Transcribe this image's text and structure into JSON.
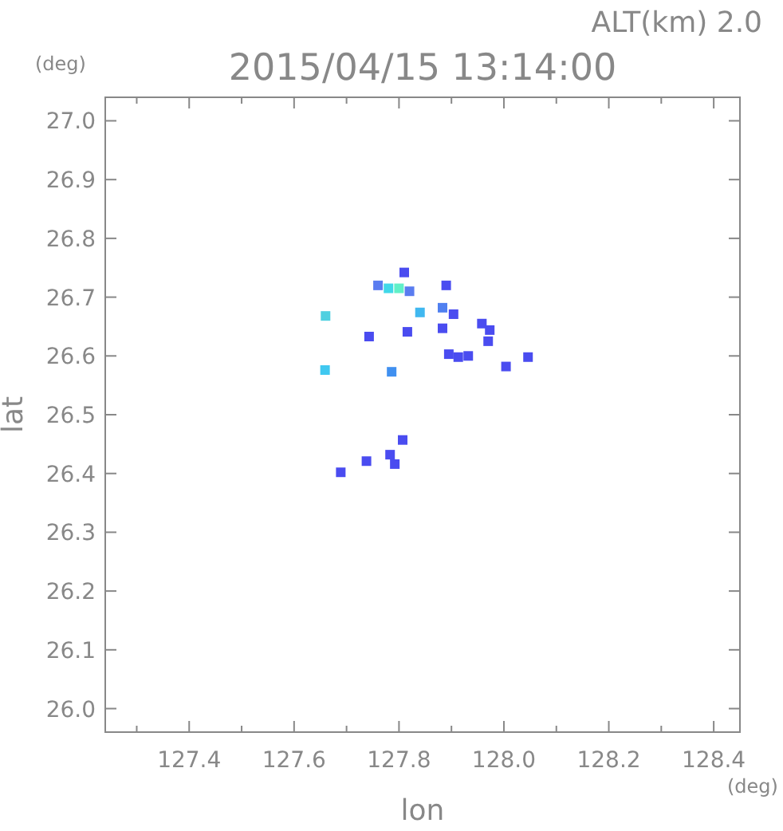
{
  "chart_data": {
    "type": "scatter",
    "title": "2015/04/15 13:14:00",
    "subtitle": "ALT(km) 2.0",
    "xlabel": "lon",
    "ylabel": "lat",
    "annotations": [
      "(deg)",
      "(deg)"
    ],
    "x": [
      127.76,
      127.78,
      127.8,
      127.82,
      127.81,
      127.89,
      127.66,
      127.84,
      127.883,
      127.904,
      127.816,
      127.743,
      127.883,
      127.958,
      127.973,
      127.97,
      127.895,
      127.913,
      127.932,
      128.004,
      128.046,
      127.659,
      127.786,
      127.807,
      127.783,
      127.792,
      127.738,
      127.689
    ],
    "values": [
      26.72,
      26.715,
      26.715,
      26.71,
      26.742,
      26.72,
      26.668,
      26.674,
      26.682,
      26.671,
      26.641,
      26.633,
      26.647,
      26.655,
      26.644,
      26.625,
      26.603,
      26.598,
      26.6,
      26.582,
      26.598,
      26.576,
      26.573,
      26.457,
      26.432,
      26.416,
      26.421,
      26.402
    ],
    "colors": [
      "#5a7cf0",
      "#40d8e8",
      "#60f0c8",
      "#5a7cf0",
      "#4a4cf0",
      "#4a4cf0",
      "#50d0e0",
      "#40b8f0",
      "#5080f0",
      "#4a4cf0",
      "#4a4cf0",
      "#4a4cf0",
      "#4a4cf0",
      "#4a4cf0",
      "#4a4cf0",
      "#4a4cf0",
      "#4a4cf0",
      "#4a4cf0",
      "#4a4cf0",
      "#4a4cf0",
      "#4a4cf0",
      "#40c8f0",
      "#4090f0",
      "#4a4cf0",
      "#4a4cf0",
      "#4a4cf0",
      "#4a4cf0",
      "#4a4cf0"
    ],
    "marker": "square",
    "xlim": [
      127.24,
      128.45
    ],
    "ylim": [
      25.96,
      27.04
    ],
    "xticks": [
      {
        "value": 127.3,
        "label": null
      },
      127.4,
      {
        "value": 127.5,
        "label": null
      },
      127.6,
      {
        "value": 127.7,
        "label": null
      },
      127.8,
      {
        "value": 127.9,
        "label": null
      },
      {
        "value": 128,
        "label": "128.0"
      },
      {
        "value": 128.1,
        "label": null
      },
      128.2,
      {
        "value": 128.3,
        "label": null
      },
      128.4
    ],
    "yticks": [
      {
        "value": 26,
        "label": "26.0"
      },
      26.1,
      26.2,
      26.3,
      26.4,
      26.5,
      26.6,
      26.7,
      26.8,
      26.9,
      {
        "value": 27,
        "label": "27.0"
      }
    ],
    "grid": false
  }
}
